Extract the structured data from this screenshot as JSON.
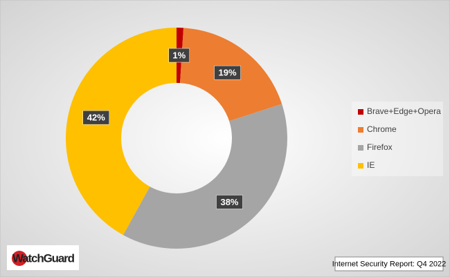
{
  "chart_data": {
    "type": "donut",
    "categories": [
      "Brave+Edge+Opera",
      "Chrome",
      "Firefox",
      "IE"
    ],
    "values": [
      1,
      19,
      38,
      42
    ],
    "value_labels": [
      "1%",
      "19%",
      "38%",
      "42%"
    ],
    "colors": [
      "#c00000",
      "#ed7d31",
      "#a5a5a5",
      "#ffc000"
    ],
    "legend": "right"
  },
  "logo": "WatchGuard",
  "footer": "Internet Security Report: Q4 2022"
}
